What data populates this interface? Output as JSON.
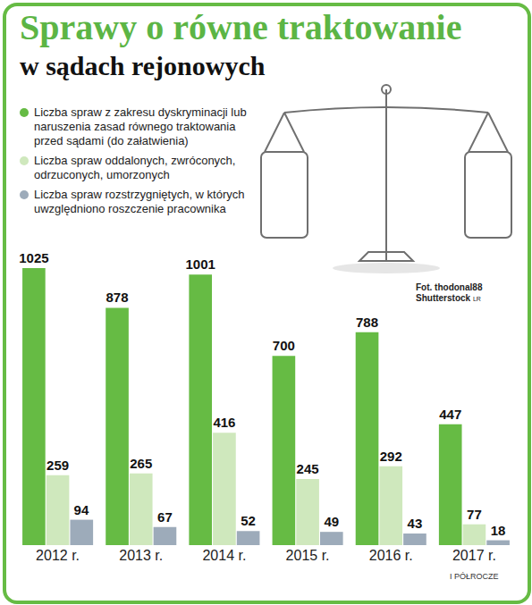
{
  "chart_data": {
    "type": "bar",
    "title": "Sprawy o równe traktowanie",
    "subtitle": "w sądach rejonowych",
    "categories": [
      "2012 r.",
      "2013 r.",
      "2014 r.",
      "2015 r.",
      "2016 r.",
      "2017 r."
    ],
    "series": [
      {
        "name": "Liczba spraw z zakresu dyskryminacji lub naruszenia zasad równego traktowania przed sądami (do załatwienia)",
        "color": "#66bb44",
        "values": [
          1025,
          878,
          1001,
          700,
          788,
          447
        ]
      },
      {
        "name": "Liczba spraw oddalonych, zwróconych, odrzuconych, umorzonych",
        "color": "#cfe8bd",
        "values": [
          259,
          265,
          416,
          245,
          292,
          77
        ]
      },
      {
        "name": "Liczba spraw rozstrzygniętych, w których uwzględniono roszczenie pracownika",
        "color": "#9dabba",
        "values": [
          94,
          67,
          52,
          49,
          43,
          18
        ]
      }
    ],
    "ylim": [
      0,
      1025
    ],
    "yticks": [],
    "tick_labels": "x",
    "grid": false,
    "legend": "top-left",
    "data_labels": true,
    "annotations": [
      {
        "text": "I PÓŁROCZE",
        "category": "2017 r."
      }
    ],
    "source": "Fot. thodonal88 Shutterstock",
    "author": "LR"
  }
}
